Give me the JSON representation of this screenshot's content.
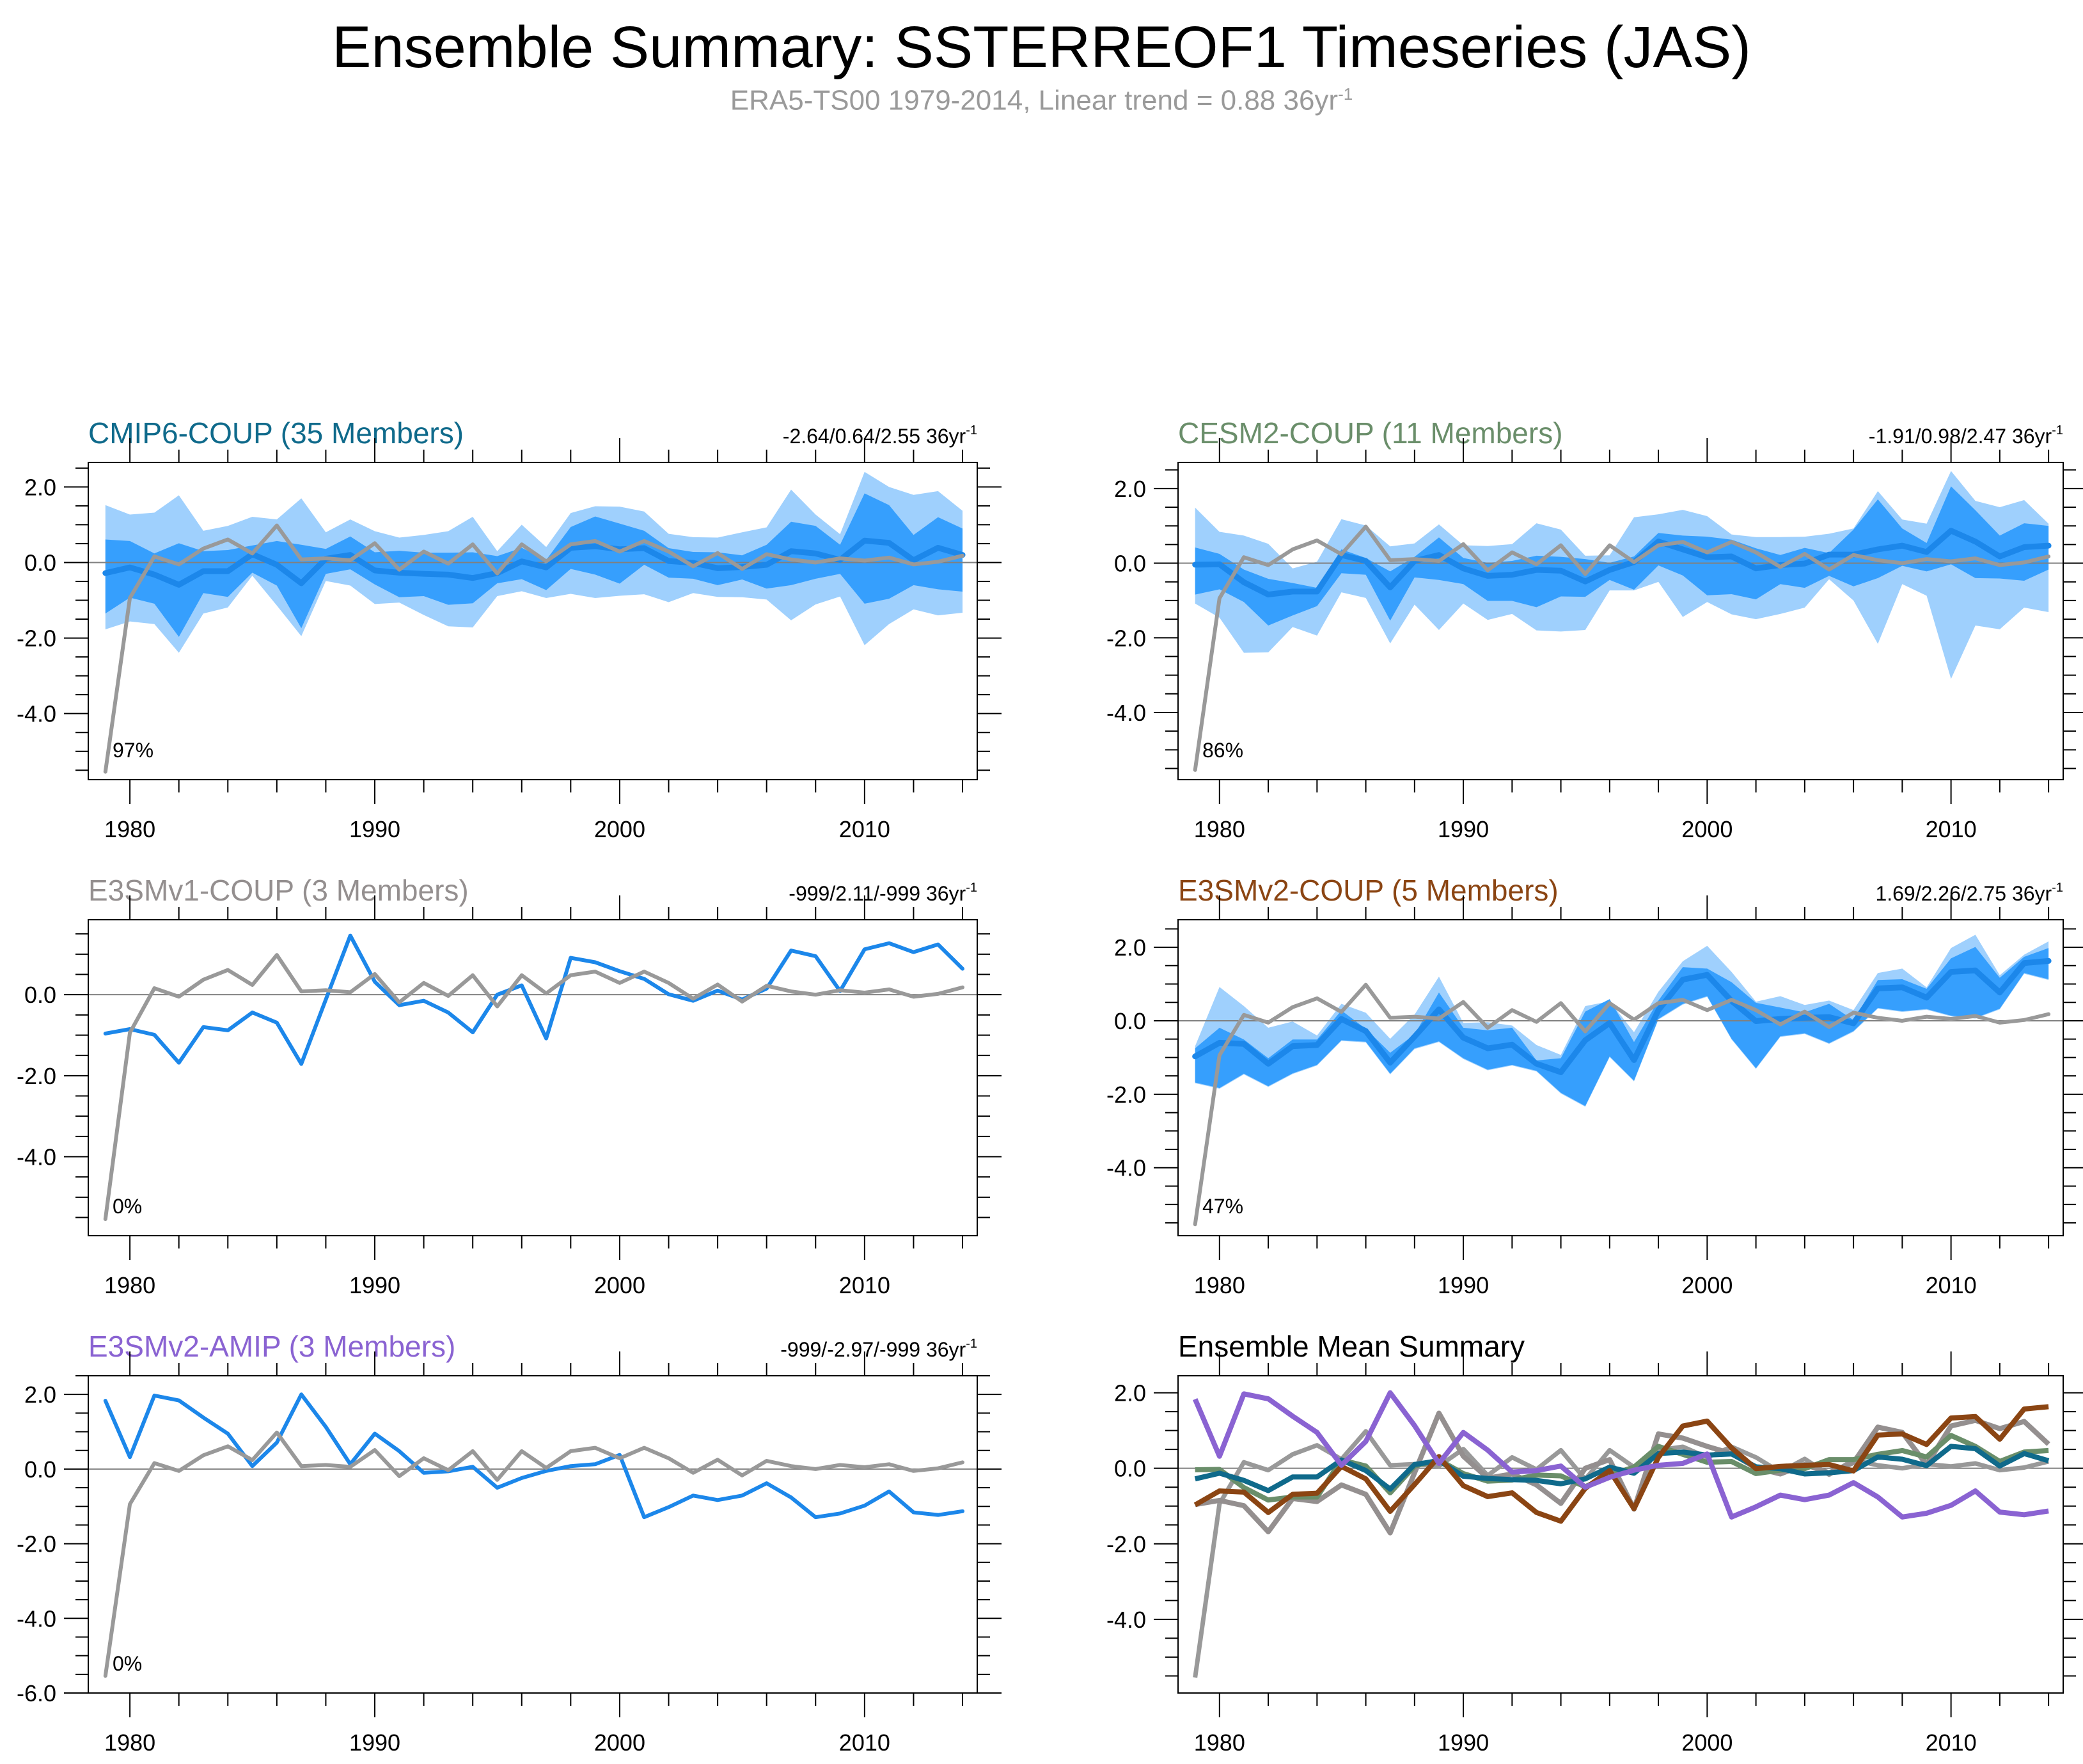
{
  "header": {
    "title": "Ensemble Summary: SSTERREOF1 Timeseries (JAS)",
    "subtitle_text": "ERA5-TS00 1979-2014, Linear trend = 0.88 36yr",
    "subtitle_sup": "-1"
  },
  "colors": {
    "obs": "#999999",
    "band_outer": "#9fd0fd",
    "band_inner": "#369ffd",
    "model_line": "#1c87ea",
    "cmip6": "#0f6a8b",
    "cesm2": "#6a8e6a",
    "e3smv1": "#948f8f",
    "e3smv2_coup": "#8b4513",
    "e3smv2_amip": "#8a63d2",
    "zero_line": "#808080"
  },
  "chart_data": [
    {
      "id": "cmip6",
      "type": "area",
      "title": "CMIP6-COUP (35 Members)",
      "title_color_key": "cmip6",
      "trend_label": "-2.64/0.64/2.55 36yr",
      "trend_sup": "-1",
      "percent_label": "97%",
      "ylim": [
        -5.75,
        2.65
      ],
      "yticks": [
        2.0,
        0.0,
        -2.0,
        -4.0
      ],
      "yticklabels": [
        "2.0",
        "0.0",
        "-2.0",
        "-4.0"
      ],
      "xlim": [
        1978.3,
        2014.6
      ],
      "xticks": [
        1980,
        1990,
        2000,
        2010
      ],
      "xticklabels": [
        "1980",
        "1990",
        "2000",
        "2010"
      ],
      "has_bands": true,
      "mean": [
        -0.28,
        -0.13,
        -0.32,
        -0.59,
        -0.23,
        -0.23,
        0.22,
        -0.06,
        -0.55,
        0.1,
        0.2,
        -0.21,
        -0.27,
        -0.3,
        -0.32,
        -0.41,
        -0.28,
        0.03,
        -0.13,
        0.39,
        0.43,
        0.35,
        0.38,
        0.04,
        -0.01,
        -0.15,
        -0.12,
        -0.06,
        0.3,
        0.24,
        0.07,
        0.58,
        0.52,
        0.06,
        0.39,
        0.2
      ],
      "inner_upper": [
        0.61,
        0.57,
        0.24,
        0.51,
        0.3,
        0.33,
        0.45,
        0.57,
        0.47,
        0.36,
        0.69,
        0.27,
        0.31,
        0.26,
        0.26,
        0.27,
        0.17,
        0.39,
        0.07,
        0.94,
        1.22,
        1.03,
        0.84,
        0.38,
        0.28,
        0.27,
        0.19,
        0.47,
        1.08,
        0.97,
        0.47,
        1.83,
        1.52,
        0.73,
        1.2,
        0.9
      ],
      "inner_lower": [
        -1.35,
        -0.93,
        -1.09,
        -1.97,
        -0.81,
        -0.91,
        -0.27,
        -0.61,
        -1.74,
        -0.3,
        -0.18,
        -0.58,
        -0.92,
        -0.89,
        -1.12,
        -1.08,
        -0.55,
        -0.44,
        -0.73,
        -0.17,
        -0.32,
        -0.56,
        -0.06,
        -0.4,
        -0.43,
        -0.6,
        -0.45,
        -0.69,
        -0.6,
        -0.43,
        -0.3,
        -1.09,
        -0.96,
        -0.6,
        -0.71,
        -0.77
      ],
      "outer_upper": [
        1.52,
        1.27,
        1.32,
        1.78,
        0.84,
        0.97,
        1.21,
        1.14,
        1.7,
        0.8,
        1.14,
        0.83,
        0.66,
        0.73,
        0.83,
        1.21,
        0.3,
        1.0,
        0.41,
        1.31,
        1.49,
        1.48,
        1.35,
        0.76,
        0.67,
        0.66,
        0.8,
        0.93,
        1.93,
        1.27,
        0.75,
        2.4,
        2.0,
        1.79,
        1.89,
        1.37
      ],
      "outer_lower": [
        -1.77,
        -1.56,
        -1.63,
        -2.39,
        -1.35,
        -1.19,
        -0.35,
        -1.14,
        -1.95,
        -0.49,
        -0.61,
        -1.1,
        -1.06,
        -1.39,
        -1.69,
        -1.72,
        -0.89,
        -0.76,
        -0.94,
        -0.83,
        -0.94,
        -0.88,
        -0.84,
        -1.05,
        -0.81,
        -0.91,
        -0.92,
        -0.98,
        -1.53,
        -1.11,
        -0.9,
        -2.19,
        -1.63,
        -1.24,
        -1.4,
        -1.33
      ]
    },
    {
      "id": "cesm2",
      "type": "area",
      "title": "CESM2-COUP (11 Members)",
      "title_color_key": "cesm2",
      "trend_label": "-1.91/0.98/2.47 36yr",
      "trend_sup": "-1",
      "percent_label": "86%",
      "ylim": [
        -5.8,
        2.7
      ],
      "yticks": [
        2.0,
        0.0,
        -2.0,
        -4.0
      ],
      "yticklabels": [
        "2.0",
        "0.0",
        "-2.0",
        "-4.0"
      ],
      "xlim": [
        1978.3,
        2014.6
      ],
      "xticks": [
        1980,
        1990,
        2000,
        2010
      ],
      "xticklabels": [
        "1980",
        "1990",
        "2000",
        "2010"
      ],
      "has_bands": true,
      "mean": [
        -0.04,
        -0.03,
        -0.51,
        -0.84,
        -0.76,
        -0.76,
        0.22,
        0.06,
        -0.65,
        0.06,
        0.22,
        -0.14,
        -0.34,
        -0.31,
        -0.18,
        -0.2,
        -0.49,
        -0.18,
        0.03,
        0.58,
        0.37,
        0.16,
        0.18,
        -0.14,
        -0.05,
        -0.01,
        0.23,
        0.23,
        0.37,
        0.47,
        0.3,
        0.87,
        0.58,
        0.18,
        0.43,
        0.47
      ],
      "inner_upper": [
        0.42,
        0.25,
        -0.17,
        -0.42,
        -0.53,
        -0.66,
        0.37,
        0.14,
        -0.22,
        0.17,
        0.69,
        0.14,
        0.01,
        0.06,
        0.2,
        0.17,
        0.11,
        0.01,
        0.18,
        0.81,
        0.74,
        0.71,
        0.63,
        0.4,
        0.22,
        0.41,
        0.27,
        0.9,
        1.71,
        0.93,
        0.54,
        2.06,
        1.42,
        0.74,
        1.07,
        1.0
      ],
      "inner_lower": [
        -0.84,
        -0.7,
        -1.04,
        -1.67,
        -1.4,
        -1.15,
        -0.27,
        -0.31,
        -1.54,
        -0.38,
        -0.45,
        -0.56,
        -1.01,
        -1.01,
        -1.18,
        -0.89,
        -0.9,
        -0.45,
        -0.71,
        -0.06,
        -0.33,
        -0.86,
        -0.83,
        -0.97,
        -0.56,
        -0.66,
        -0.34,
        -0.62,
        -0.4,
        -0.07,
        -0.22,
        -0.03,
        -0.4,
        -0.41,
        -0.47,
        -0.17
      ],
      "outer_upper": [
        1.49,
        0.84,
        0.74,
        0.52,
        -0.14,
        0.04,
        1.18,
        1.01,
        0.45,
        0.53,
        1.04,
        0.48,
        0.46,
        0.51,
        1.07,
        0.9,
        0.2,
        0.21,
        1.23,
        1.31,
        1.43,
        1.26,
        0.77,
        0.7,
        0.7,
        0.71,
        0.79,
        0.93,
        1.93,
        1.17,
        1.06,
        2.47,
        1.67,
        1.5,
        1.69,
        1.06
      ],
      "outer_lower": [
        -1.08,
        -1.46,
        -2.4,
        -2.39,
        -1.71,
        -1.94,
        -0.78,
        -0.93,
        -2.15,
        -1.11,
        -1.79,
        -1.08,
        -1.52,
        -1.36,
        -1.8,
        -1.83,
        -1.79,
        -0.73,
        -0.73,
        -0.5,
        -1.44,
        -1.04,
        -1.37,
        -1.5,
        -1.36,
        -1.19,
        -0.43,
        -1.0,
        -2.16,
        -0.56,
        -0.87,
        -3.1,
        -1.67,
        -1.77,
        -1.19,
        -1.31
      ]
    },
    {
      "id": "e3smv1",
      "type": "line",
      "title": "E3SMv1-COUP (3 Members)",
      "title_color_key": "e3smv1",
      "trend_label": "-999/2.11/-999 36yr",
      "trend_sup": "-1",
      "percent_label": "0%",
      "ylim": [
        -5.95,
        1.85
      ],
      "yticks": [
        0.0,
        -2.0,
        -4.0
      ],
      "yticklabels": [
        "0.0",
        "-2.0",
        "-4.0"
      ],
      "xlim": [
        1978.3,
        2014.6
      ],
      "xticks": [
        1980,
        1990,
        2000,
        2010
      ],
      "xticklabels": [
        "1980",
        "1990",
        "2000",
        "2010"
      ],
      "has_bands": false,
      "mean": [
        -0.96,
        -0.85,
        -0.99,
        -1.68,
        -0.8,
        -0.88,
        -0.44,
        -0.69,
        -1.71,
        -0.12,
        1.46,
        0.32,
        -0.26,
        -0.15,
        -0.44,
        -0.93,
        0.0,
        0.23,
        -1.08,
        0.91,
        0.8,
        0.58,
        0.39,
        0.01,
        -0.15,
        0.1,
        -0.12,
        0.15,
        1.09,
        0.95,
        0.09,
        1.12,
        1.27,
        1.05,
        1.24,
        0.64
      ]
    },
    {
      "id": "e3smv2_coup",
      "type": "area",
      "title": "E3SMv2-COUP (5 Members)",
      "title_color_key": "e3smv2_coup",
      "trend_label": "1.69/2.26/2.75 36yr",
      "trend_sup": "-1",
      "percent_label": "47%",
      "ylim": [
        -5.85,
        2.75
      ],
      "yticks": [
        2.0,
        0.0,
        -2.0,
        -4.0
      ],
      "yticklabels": [
        "2.0",
        "0.0",
        "-2.0",
        "-4.0"
      ],
      "xlim": [
        1978.3,
        2014.6
      ],
      "xticks": [
        1980,
        1990,
        2000,
        2010
      ],
      "xticklabels": [
        "1980",
        "1990",
        "2000",
        "2010"
      ],
      "has_bands": true,
      "mean": [
        -0.97,
        -0.6,
        -0.63,
        -1.17,
        -0.69,
        -0.66,
        0.05,
        -0.28,
        -1.14,
        -0.43,
        0.31,
        -0.46,
        -0.75,
        -0.65,
        -1.17,
        -1.4,
        -0.53,
        -0.06,
        -1.07,
        0.29,
        1.12,
        1.25,
        0.54,
        -0.01,
        0.05,
        0.08,
        0.1,
        -0.07,
        0.88,
        0.91,
        0.63,
        1.33,
        1.37,
        0.77,
        1.57,
        1.63
      ],
      "inner_upper": [
        -0.75,
        -0.19,
        -0.51,
        -1.02,
        -0.51,
        -0.51,
        0.28,
        -0.22,
        -0.87,
        -0.37,
        0.77,
        -0.19,
        -0.26,
        -0.19,
        -1.08,
        -1.02,
        0.25,
        0.59,
        -0.58,
        0.55,
        1.46,
        1.42,
        1.05,
        0.49,
        0.36,
        0.23,
        0.46,
        0.02,
        1.11,
        1.13,
        0.87,
        1.7,
        2.01,
        1.17,
        1.74,
        1.98
      ],
      "inner_lower": [
        -1.68,
        -1.83,
        -1.44,
        -1.78,
        -1.43,
        -1.2,
        -0.53,
        -0.57,
        -1.44,
        -0.75,
        -0.56,
        -1.02,
        -1.33,
        -1.2,
        -1.36,
        -1.96,
        -2.32,
        -0.97,
        -1.63,
        0.05,
        0.46,
        0.67,
        -0.49,
        -1.29,
        -0.42,
        -0.34,
        -0.61,
        -0.28,
        0.35,
        0.26,
        0.32,
        0.14,
        0.08,
        0.33,
        1.3,
        1.13
      ],
      "outer_upper": [
        -0.69,
        0.92,
        0.4,
        -0.19,
        -0.02,
        -0.4,
        0.46,
        0.22,
        -0.49,
        0.17,
        1.2,
        -0.06,
        -0.04,
        -0.13,
        -0.66,
        -0.93,
        0.4,
        0.53,
        -0.31,
        0.79,
        1.62,
        2.04,
        1.33,
        0.52,
        0.67,
        0.43,
        0.55,
        0.29,
        1.3,
        1.42,
        0.91,
        1.98,
        2.34,
        1.24,
        1.8,
        2.16
      ],
      "outer_lower": [
        -1.7,
        -1.85,
        -1.46,
        -1.8,
        -1.45,
        -1.22,
        -0.55,
        -0.59,
        -1.46,
        -0.77,
        -0.58,
        -1.04,
        -1.35,
        -1.22,
        -1.38,
        -1.98,
        -2.34,
        -0.99,
        -1.65,
        0.03,
        0.44,
        0.65,
        -0.51,
        -1.31,
        -0.44,
        -0.36,
        -0.63,
        -0.3,
        0.33,
        0.24,
        0.3,
        0.12,
        0.06,
        0.31,
        1.28,
        1.11
      ]
    },
    {
      "id": "e3smv2_amip",
      "type": "line",
      "title": "E3SMv2-AMIP (3 Members)",
      "title_color_key": "e3smv2_amip",
      "trend_label": "-999/-2.97/-999 36yr",
      "trend_sup": "-1",
      "percent_label": "0%",
      "ylim": [
        -6.0,
        2.5
      ],
      "yticks": [
        2.0,
        0.0,
        -2.0,
        -4.0,
        -6.0
      ],
      "yticklabels": [
        "2.0",
        "0.0",
        "-2.0",
        "-4.0",
        "-6.0"
      ],
      "xlim": [
        1978.3,
        2014.6
      ],
      "xticks": [
        1980,
        1990,
        2000,
        2010
      ],
      "xticklabels": [
        "1980",
        "1990",
        "2000",
        "2010"
      ],
      "has_bands": false,
      "mean": [
        1.83,
        0.32,
        1.97,
        1.84,
        1.38,
        0.95,
        0.08,
        0.71,
        2.0,
        1.13,
        0.13,
        0.95,
        0.48,
        -0.1,
        -0.06,
        0.06,
        -0.5,
        -0.24,
        -0.05,
        0.08,
        0.13,
        0.38,
        -1.29,
        -1.02,
        -0.71,
        -0.83,
        -0.71,
        -0.38,
        -0.76,
        -1.29,
        -1.19,
        -0.98,
        -0.6,
        -1.16,
        -1.23,
        -1.13
      ]
    },
    {
      "id": "ensemble_mean_summary",
      "type": "line",
      "title": "Ensemble Mean Summary",
      "title_color_key": "",
      "trend_label": "",
      "trend_sup": "",
      "percent_label": "",
      "ylim": [
        -5.95,
        2.45
      ],
      "yticks": [
        2.0,
        0.0,
        -2.0,
        -4.0
      ],
      "yticklabels": [
        "2.0",
        "0.0",
        "-2.0",
        "-4.0"
      ],
      "xlim": [
        1978.3,
        2014.6
      ],
      "xticks": [
        1980,
        1990,
        2000,
        2010
      ],
      "xticklabels": [
        "1980",
        "1990",
        "2000",
        "2010"
      ],
      "has_bands": false,
      "series_keys": [
        "e3smv1",
        "cesm2",
        "cmip6",
        "e3smv2_coup",
        "e3smv2_amip"
      ]
    }
  ],
  "observations": {
    "name": "ERA5-TS00",
    "years_start": 1979,
    "years_end": 2014,
    "values": [
      -5.54,
      -0.94,
      0.16,
      -0.05,
      0.37,
      0.61,
      0.24,
      0.98,
      0.08,
      0.11,
      0.06,
      0.51,
      -0.19,
      0.29,
      -0.03,
      0.48,
      -0.29,
      0.48,
      0.03,
      0.48,
      0.57,
      0.29,
      0.57,
      0.29,
      -0.1,
      0.25,
      -0.17,
      0.22,
      0.08,
      0.0,
      0.11,
      0.05,
      0.13,
      -0.05,
      0.02,
      0.18
    ]
  }
}
